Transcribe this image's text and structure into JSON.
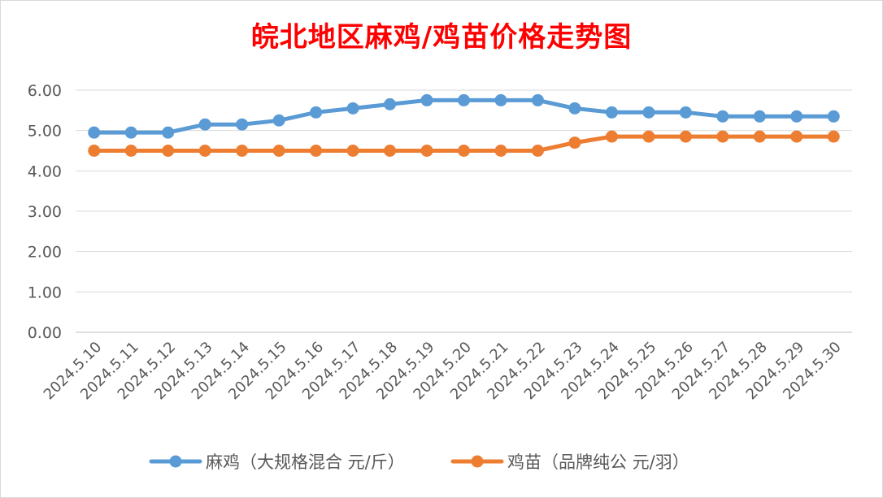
{
  "chart_data": {
    "type": "line",
    "title": "皖北地区麻鸡/鸡苗价格走势图",
    "xlabel": "",
    "ylabel": "",
    "ylim": [
      0,
      6
    ],
    "yticks": [
      "0.00",
      "1.00",
      "2.00",
      "3.00",
      "4.00",
      "5.00",
      "6.00"
    ],
    "grid": "horizontal",
    "legend_position": "bottom",
    "categories": [
      "2024.5.10",
      "2024.5.11",
      "2024.5.12",
      "2024.5.13",
      "2024.5.14",
      "2024.5.15",
      "2024.5.16",
      "2024.5.17",
      "2024.5.18",
      "2024.5.19",
      "2024.5.20",
      "2024.5.21",
      "2024.5.22",
      "2024.5.23",
      "2024.5.24",
      "2024.5.25",
      "2024.5.26",
      "2024.5.27",
      "2024.5.28",
      "2024.5.29",
      "2024.5.30"
    ],
    "series": [
      {
        "name": "麻鸡（大规格混合 元/斤）",
        "color": "#5b9bd5",
        "values": [
          4.95,
          4.95,
          4.95,
          5.15,
          5.15,
          5.25,
          5.45,
          5.55,
          5.65,
          5.75,
          5.75,
          5.75,
          5.75,
          5.55,
          5.45,
          5.45,
          5.45,
          5.35,
          5.35,
          5.35,
          5.35
        ]
      },
      {
        "name": "鸡苗（品牌纯公 元/羽）",
        "color": "#ed7d31",
        "values": [
          4.5,
          4.5,
          4.5,
          4.5,
          4.5,
          4.5,
          4.5,
          4.5,
          4.5,
          4.5,
          4.5,
          4.5,
          4.5,
          4.7,
          4.85,
          4.85,
          4.85,
          4.85,
          4.85,
          4.85,
          4.85
        ]
      }
    ]
  }
}
